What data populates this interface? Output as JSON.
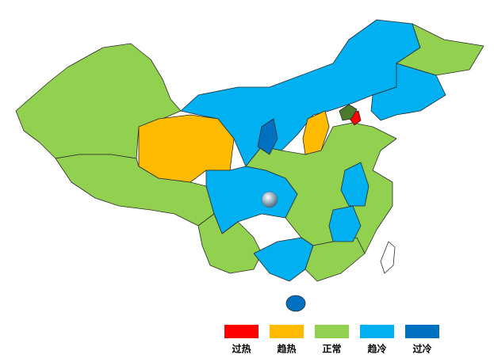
{
  "legend": {
    "items": [
      {
        "label": "过热",
        "color": "#ff0000"
      },
      {
        "label": "趋热",
        "color": "#ffbb00"
      },
      {
        "label": "正常",
        "color": "#92d050"
      },
      {
        "label": "趋冷",
        "color": "#00b0f0"
      },
      {
        "label": "过冷",
        "color": "#0070c0"
      }
    ]
  }
}
